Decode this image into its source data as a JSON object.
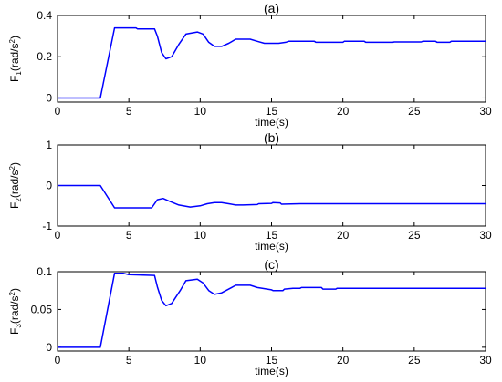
{
  "chart_data": [
    {
      "type": "line",
      "title": "(a)",
      "xlabel": "time(s)",
      "ylabel_main": "F",
      "ylabel_sub": "1",
      "ylabel_unit": "(rad/s",
      "ylabel_sup": "2",
      "ylabel_close": ")",
      "xlim": [
        0,
        30
      ],
      "ylim": [
        -0.02,
        0.4
      ],
      "xticks": [
        0,
        5,
        10,
        15,
        20,
        25,
        30
      ],
      "xtick_labels": [
        "0",
        "5",
        "10",
        "15",
        "20",
        "25",
        "30"
      ],
      "yticks": [
        0,
        0.2,
        0.4
      ],
      "ytick_labels": [
        "0",
        "0.2",
        "0.4"
      ],
      "color": "#0000ff",
      "x": [
        0,
        3.0,
        4.0,
        5.5,
        5.6,
        6.8,
        7.0,
        7.3,
        7.6,
        8.0,
        8.5,
        9.0,
        9.8,
        10.2,
        10.6,
        11.0,
        11.5,
        12.0,
        12.5,
        13.5,
        14.0,
        14.5,
        15.0,
        15.5,
        16.0,
        16.2,
        17.0,
        18.0,
        18.1,
        20.0,
        20.1,
        21.5,
        21.6,
        23.5,
        23.6,
        25.5,
        25.6,
        26.5,
        26.6,
        27.5,
        27.6,
        30
      ],
      "y": [
        0,
        0,
        0.34,
        0.34,
        0.335,
        0.335,
        0.3,
        0.22,
        0.19,
        0.2,
        0.26,
        0.31,
        0.32,
        0.31,
        0.27,
        0.25,
        0.25,
        0.265,
        0.285,
        0.285,
        0.275,
        0.265,
        0.265,
        0.265,
        0.27,
        0.275,
        0.275,
        0.275,
        0.27,
        0.27,
        0.275,
        0.275,
        0.27,
        0.27,
        0.272,
        0.272,
        0.275,
        0.275,
        0.27,
        0.27,
        0.275,
        0.275
      ]
    },
    {
      "type": "line",
      "title": "(b)",
      "xlabel": "time(s)",
      "ylabel_main": "F",
      "ylabel_sub": "2",
      "ylabel_unit": "(rad/s",
      "ylabel_sup": "2",
      "ylabel_close": ")",
      "xlim": [
        0,
        30
      ],
      "ylim": [
        -1,
        1
      ],
      "xticks": [
        0,
        5,
        10,
        15,
        20,
        25,
        30
      ],
      "xtick_labels": [
        "0",
        "5",
        "10",
        "15",
        "20",
        "25",
        "30"
      ],
      "yticks": [
        -1,
        0,
        1
      ],
      "ytick_labels": [
        "-1",
        "0",
        "1"
      ],
      "color": "#0000ff",
      "x": [
        0,
        3.0,
        4.0,
        6.0,
        6.6,
        7.0,
        7.4,
        7.8,
        8.5,
        9.3,
        10.0,
        10.5,
        11.0,
        11.5,
        12.0,
        12.5,
        13.0,
        14.0,
        14.1,
        15.0,
        15.1,
        15.6,
        15.7,
        17.0,
        30
      ],
      "y": [
        0,
        0,
        -0.55,
        -0.55,
        -0.55,
        -0.35,
        -0.32,
        -0.38,
        -0.48,
        -0.53,
        -0.5,
        -0.45,
        -0.42,
        -0.42,
        -0.45,
        -0.48,
        -0.48,
        -0.47,
        -0.45,
        -0.44,
        -0.42,
        -0.43,
        -0.46,
        -0.45,
        -0.45
      ]
    },
    {
      "type": "line",
      "title": "(c)",
      "xlabel": "time(s)",
      "ylabel_main": "F",
      "ylabel_sub": "3",
      "ylabel_unit": "(rad/s",
      "ylabel_sup": "2",
      "ylabel_close": ")",
      "xlim": [
        0,
        30
      ],
      "ylim": [
        -0.005,
        0.1
      ],
      "xticks": [
        0,
        5,
        10,
        15,
        20,
        25,
        30
      ],
      "xtick_labels": [
        "0",
        "5",
        "10",
        "15",
        "20",
        "25",
        "30"
      ],
      "yticks": [
        0,
        0.05,
        0.1
      ],
      "ytick_labels": [
        "0",
        "0.05",
        "0.1"
      ],
      "color": "#0000ff",
      "x": [
        0,
        3.0,
        4.0,
        4.6,
        5.0,
        6.8,
        7.0,
        7.3,
        7.6,
        8.0,
        8.6,
        9.0,
        9.8,
        10.2,
        10.6,
        11.0,
        11.5,
        12.0,
        12.5,
        13.5,
        14.0,
        15.0,
        15.1,
        15.8,
        15.9,
        16.5,
        17.0,
        17.1,
        18.5,
        18.6,
        19.5,
        19.6,
        30
      ],
      "y": [
        0,
        0,
        0.098,
        0.098,
        0.096,
        0.095,
        0.08,
        0.062,
        0.055,
        0.058,
        0.075,
        0.088,
        0.09,
        0.085,
        0.075,
        0.07,
        0.072,
        0.077,
        0.082,
        0.082,
        0.079,
        0.076,
        0.075,
        0.075,
        0.077,
        0.078,
        0.078,
        0.079,
        0.079,
        0.077,
        0.077,
        0.078,
        0.078
      ]
    }
  ]
}
